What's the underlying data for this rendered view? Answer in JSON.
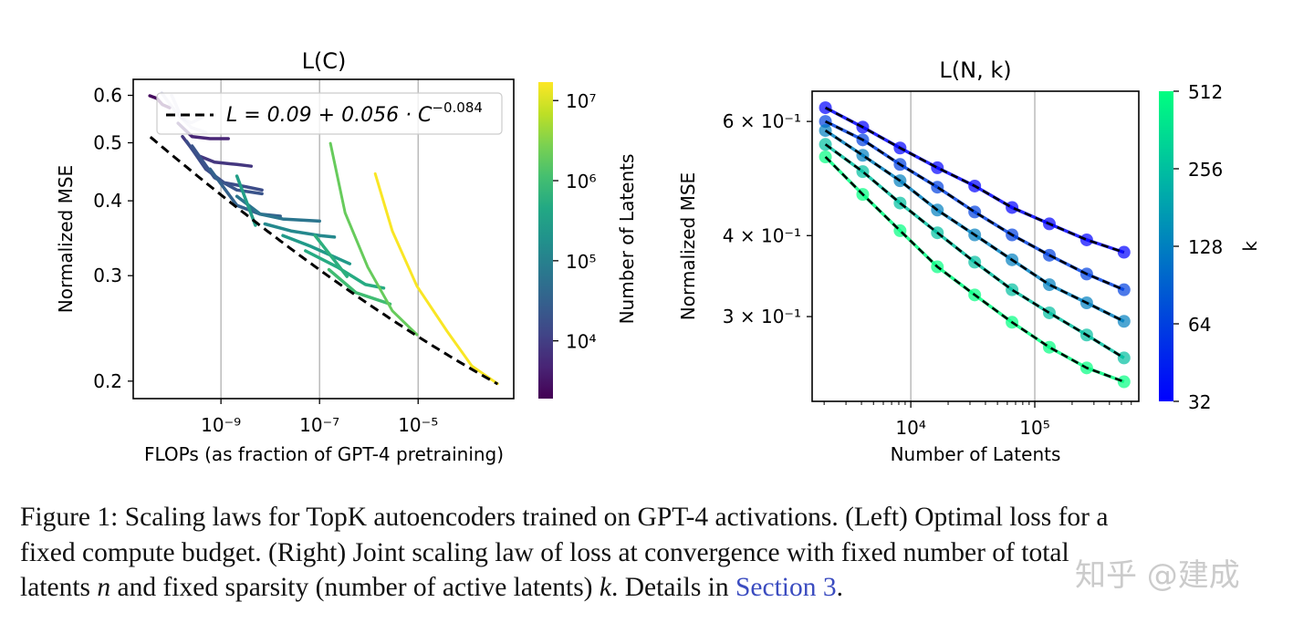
{
  "chart_data": [
    {
      "type": "line",
      "title": "L(C)",
      "xlabel": "FLOPs (as fraction of GPT-4 pretraining)",
      "ylabel": "Normalized MSE",
      "xscale": "log",
      "yscale": "log",
      "xlim": [
        1.66e-11,
        0.00087
      ],
      "ylim": [
        0.187,
        0.638
      ],
      "xticks": [
        {
          "value": 1e-09,
          "label": "10⁻⁹"
        },
        {
          "value": 1e-07,
          "label": "10⁻⁷"
        },
        {
          "value": 1e-05,
          "label": "10⁻⁵"
        }
      ],
      "yticks": [
        {
          "value": 0.2,
          "label": "0.2"
        },
        {
          "value": 0.3,
          "label": "0.3"
        },
        {
          "value": 0.4,
          "label": "0.4"
        },
        {
          "value": 0.5,
          "label": "0.5"
        },
        {
          "value": 0.6,
          "label": "0.6"
        }
      ],
      "grid": "x-major",
      "legend": {
        "placement": "top",
        "label_main": "L = 0.09 + 0.056 · C",
        "label_exp": "−0.084"
      },
      "fit": {
        "a": 0.09,
        "b": 0.056,
        "alpha": -0.084,
        "x_range": [
          3.7e-11,
          0.00041
        ],
        "style": "black dashed"
      },
      "colorbar": {
        "label": "Number of Latents",
        "colormap": "viridis",
        "range": [
          1900,
          17000000
        ],
        "ticks": [
          {
            "value": 10000.0,
            "label": "10⁴"
          },
          {
            "value": 100000.0,
            "label": "10⁵"
          },
          {
            "value": 1000000.0,
            "label": "10⁶"
          },
          {
            "value": 10000000.0,
            "label": "10⁷"
          }
        ]
      },
      "series": [
        {
          "n": 2500,
          "points": [
            [
              3.6e-11,
              0.599
            ],
            [
              5e-11,
              0.593
            ],
            [
              6.5e-11,
              0.579
            ],
            [
              9.1e-11,
              0.572
            ]
          ]
        },
        {
          "n": 3000,
          "faded": true,
          "points": [
            [
              6.3e-11,
              0.605
            ],
            [
              1.26e-10,
              0.56
            ],
            [
              2.5e-10,
              0.53
            ],
            [
              5e-10,
              0.52
            ]
          ]
        },
        {
          "n": 3000,
          "faded": true,
          "points": [
            [
              1e-10,
              0.6
            ],
            [
              1.6e-10,
              0.55
            ],
            [
              2.5e-10,
              0.54
            ],
            [
              4e-10,
              0.55
            ]
          ]
        },
        {
          "n": 5000,
          "points": [
            [
              1.35e-10,
              0.539
            ],
            [
              2.6e-10,
              0.512
            ],
            [
              6e-10,
              0.508
            ],
            [
              1.41e-09,
              0.508
            ]
          ]
        },
        {
          "n": 8000,
          "points": [
            [
              1.66e-10,
              0.512
            ],
            [
              3.2e-10,
              0.477
            ],
            [
              7.4e-10,
              0.464
            ],
            [
              2.1e-09,
              0.46
            ],
            [
              4.1e-09,
              0.457
            ]
          ]
        },
        {
          "n": 16000,
          "points": [
            [
              2e-10,
              0.503
            ],
            [
              4.9e-10,
              0.452
            ],
            [
              1.15e-09,
              0.429
            ],
            [
              3.3e-09,
              0.422
            ],
            [
              6.8e-09,
              0.417
            ]
          ]
        },
        {
          "n": 20000,
          "points": [
            [
              2.6e-10,
              0.494
            ],
            [
              7.4e-10,
              0.437
            ],
            [
              2.1e-09,
              0.417
            ],
            [
              6.8e-09,
              0.411
            ]
          ]
        },
        {
          "n": 32000,
          "points": [
            [
              6e-10,
              0.452
            ],
            [
              2.1e-09,
              0.393
            ],
            [
              6.3e-09,
              0.38
            ],
            [
              1.6e-08,
              0.377
            ]
          ]
        },
        {
          "n": 64000,
          "points": [
            [
              2.1e-09,
              0.407
            ],
            [
              6.3e-09,
              0.38
            ],
            [
              1.8e-08,
              0.373
            ],
            [
              1e-07,
              0.37
            ]
          ]
        },
        {
          "n": 130000,
          "points": [
            [
              7.8e-09,
              0.366
            ],
            [
              2.75e-08,
              0.356
            ],
            [
              1e-07,
              0.35
            ],
            [
              2e-07,
              0.348
            ]
          ]
        },
        {
          "n": 260000,
          "points": [
            [
              1.8e-08,
              0.35
            ],
            [
              6.5e-08,
              0.336
            ],
            [
              4.1e-07,
              0.314
            ]
          ]
        },
        {
          "n": 300000,
          "points": [
            [
              2.1e-09,
              0.44
            ],
            [
              5e-09,
              0.364
            ]
          ]
        },
        {
          "n": 500000,
          "points": [
            [
              5.2e-08,
              0.33
            ],
            [
              2.3e-07,
              0.31
            ],
            [
              8.5e-07,
              0.29
            ],
            [
              2e-06,
              0.286
            ]
          ]
        },
        {
          "n": 600000,
          "points": [
            [
              8.1e-08,
              0.35
            ],
            [
              3.6e-07,
              0.299
            ]
          ]
        },
        {
          "n": 1000000,
          "points": [
            [
              1.55e-07,
              0.307
            ],
            [
              5.5e-07,
              0.281
            ],
            [
              2.7e-06,
              0.269
            ]
          ]
        },
        {
          "n": 2000000,
          "points": [
            [
              1.66e-07,
              0.499
            ],
            [
              3.3e-07,
              0.382
            ],
            [
              9.5e-07,
              0.31
            ],
            [
              3e-06,
              0.262
            ],
            [
              9.5e-06,
              0.239
            ]
          ]
        },
        {
          "n": 16000000,
          "points": [
            [
              1.35e-06,
              0.444
            ],
            [
              3e-06,
              0.356
            ],
            [
              9.5e-06,
              0.288
            ],
            [
              3.9e-05,
              0.242
            ],
            [
              0.000123,
              0.212
            ],
            [
              0.00041,
              0.198
            ]
          ]
        }
      ]
    },
    {
      "type": "line",
      "title": "L(N, k)",
      "xlabel": "Number of Latents",
      "ylabel": "Normalized MSE",
      "xscale": "log",
      "yscale": "log",
      "xlim": [
        1600,
        690000
      ],
      "ylim": [
        0.222,
        0.668
      ],
      "xticks": [
        {
          "value": 10000.0,
          "label": "10⁴"
        },
        {
          "value": 100000.0,
          "label": "10⁵"
        }
      ],
      "yticks": [
        {
          "value": 0.6,
          "label": "6 × 10⁻¹"
        },
        {
          "value": 0.4,
          "label": "4 × 10⁻¹"
        },
        {
          "value": 0.3,
          "label": "3 × 10⁻¹"
        }
      ],
      "grid": "x-major",
      "colorbar": {
        "label": "k",
        "colormap": "winter",
        "range": [
          32,
          512
        ],
        "ticks": [
          {
            "value": 32,
            "label": "32"
          },
          {
            "value": 64,
            "label": "64"
          },
          {
            "value": 128,
            "label": "128"
          },
          {
            "value": 256,
            "label": "256"
          },
          {
            "value": 512,
            "label": "512"
          }
        ]
      },
      "x": [
        2048,
        4096,
        8192,
        16384,
        32768,
        65536,
        131072,
        262144,
        524288
      ],
      "series": [
        {
          "k": 32,
          "values": [
            0.63,
            0.588,
            0.546,
            0.509,
            0.477,
            0.442,
            0.417,
            0.394,
            0.377
          ]
        },
        {
          "k": 64,
          "values": [
            0.6,
            0.562,
            0.515,
            0.475,
            0.435,
            0.401,
            0.373,
            0.349,
            0.33
          ]
        },
        {
          "k": 128,
          "values": [
            0.581,
            0.532,
            0.486,
            0.438,
            0.401,
            0.367,
            0.336,
            0.315,
            0.295
          ]
        },
        {
          "k": 256,
          "values": [
            0.553,
            0.502,
            0.449,
            0.404,
            0.364,
            0.33,
            0.304,
            0.281,
            0.259
          ]
        },
        {
          "k": 512,
          "values": [
            0.529,
            0.463,
            0.407,
            0.358,
            0.324,
            0.294,
            0.269,
            0.25,
            0.238
          ]
        }
      ],
      "fit_style": "black dashed"
    }
  ],
  "caption": {
    "line1": "Figure 1: Scaling laws for TopK autoencoders trained on GPT-4 activations. (Left) Optimal loss for a",
    "line2": "fixed compute budget. (Right) Joint scaling law of loss at convergence with fixed number of total",
    "line3_a": "latents ",
    "line3_n": "n",
    "line3_b": " and fixed sparsity (number of active latents) ",
    "line3_k": "k",
    "line3_c": ". Details in ",
    "link": "Section 3",
    "line3_end": "."
  },
  "watermark": "知乎 @建成",
  "colors": {
    "link": "#3b4cc0",
    "fit": "#000000"
  }
}
